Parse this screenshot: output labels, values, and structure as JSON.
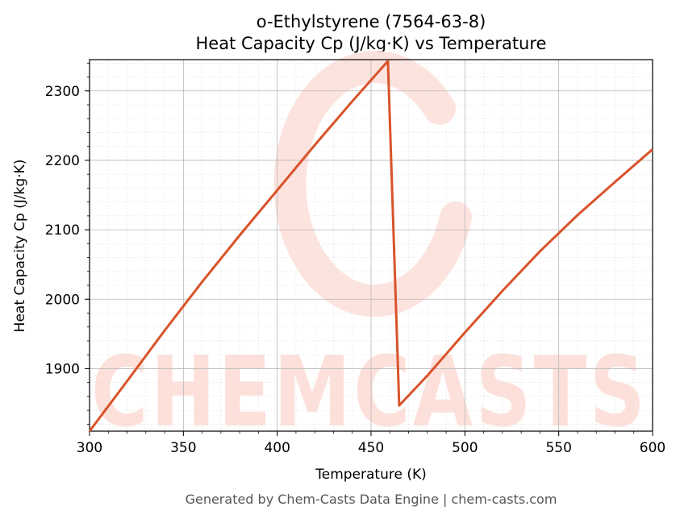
{
  "chart_data": {
    "type": "line",
    "title": "o-Ethylstyrene (7564-63-8)",
    "subtitle": "Heat Capacity Cp (J/kg·K) vs Temperature",
    "xlabel": "Temperature (K)",
    "ylabel": "Heat Capacity Cp (J/kg·K)",
    "xlim": [
      300,
      600
    ],
    "ylim": [
      1810,
      2345
    ],
    "x_ticks": [
      300,
      350,
      400,
      450,
      500,
      550,
      600
    ],
    "y_ticks": [
      1900,
      2000,
      2100,
      2200,
      2300
    ],
    "grid": true,
    "line_color": "#d9532a",
    "series": [
      {
        "x": [
          300,
          320,
          340,
          360,
          380,
          400,
          420,
          440,
          459,
          465,
          480,
          500,
          520,
          540,
          560,
          580,
          600
        ],
        "values": [
          1810,
          1882,
          1955,
          2025,
          2092,
          2157,
          2222,
          2285,
          2343,
          1847,
          1890,
          1952,
          2012,
          2069,
          2121,
          2169,
          2216
        ]
      }
    ]
  },
  "watermark": {
    "text": "CHEMCASTS",
    "color": "#fde0da"
  },
  "footer": "Generated by Chem-Casts Data Engine | chem-casts.com"
}
